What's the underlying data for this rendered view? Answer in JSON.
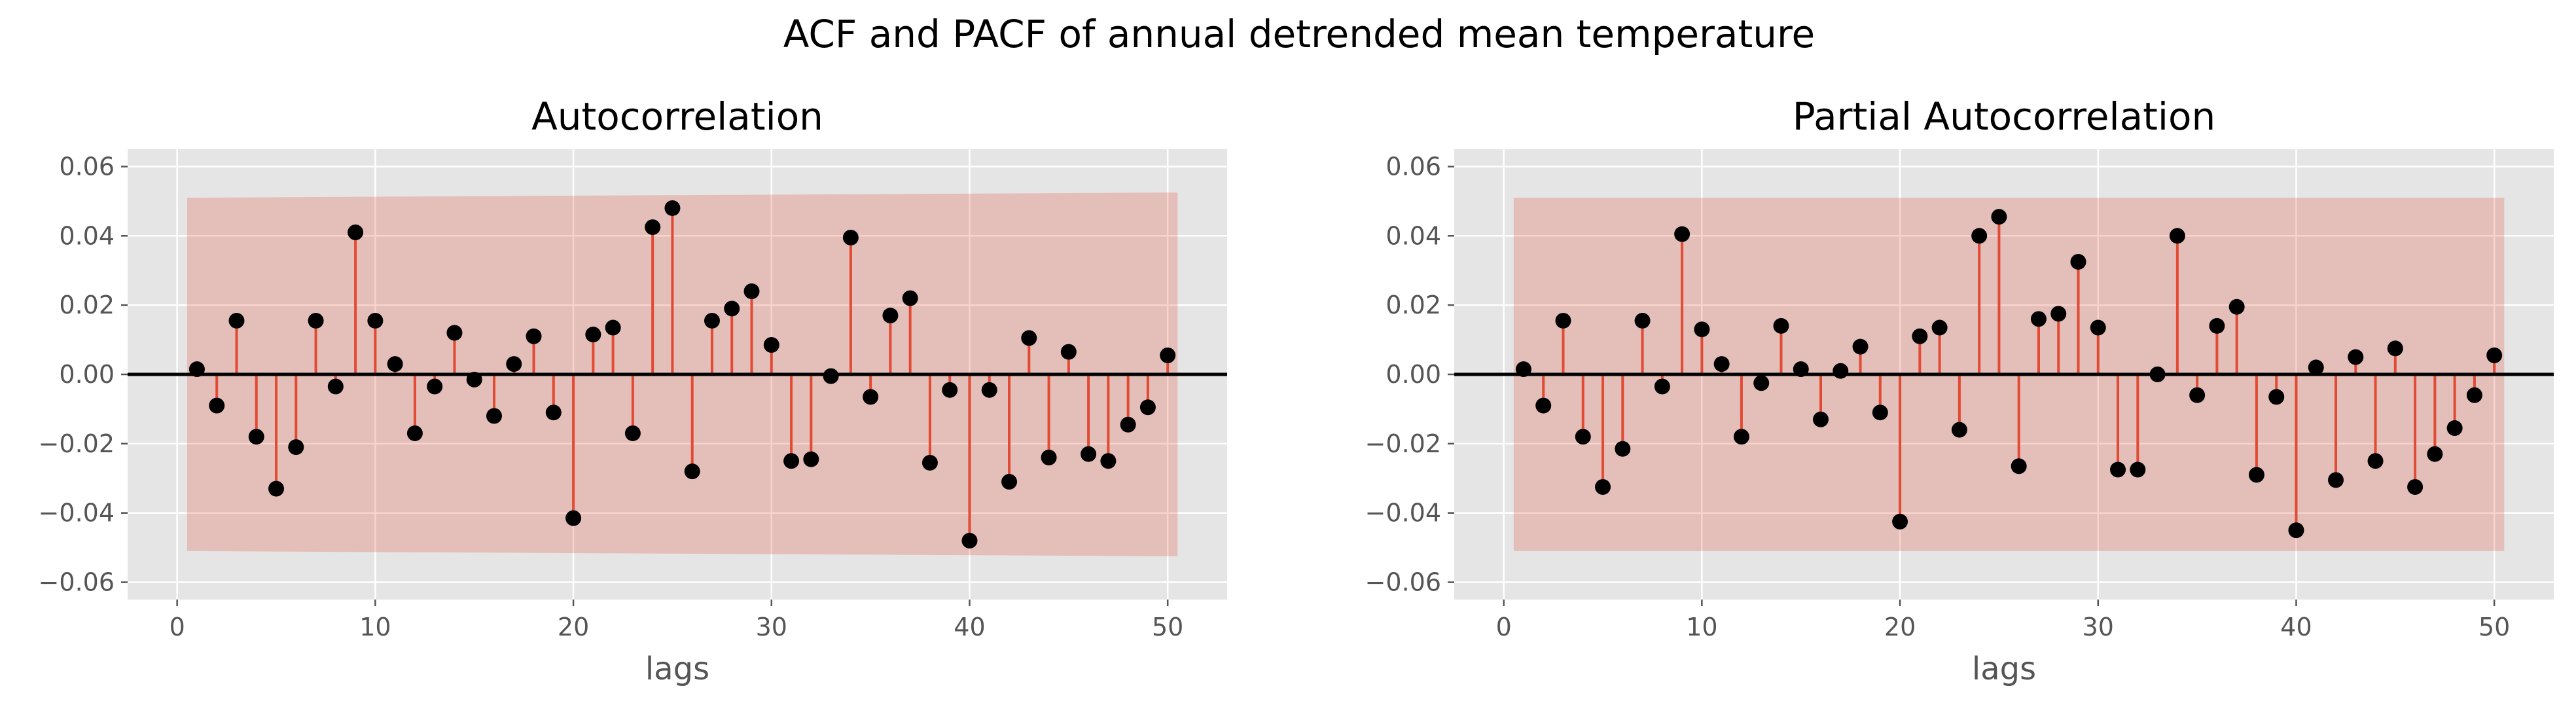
{
  "figure": {
    "title": "ACF and PACF of annual detrended mean temperature"
  },
  "style": {
    "axes_background": "#e5e5e5",
    "grid_color": "#ffffff",
    "stem_color": "#e24a33",
    "marker_color": "#000000",
    "confidence_band_color": "#e24a33",
    "zero_line_color": "#000000",
    "tick_color": "#555555"
  },
  "chart_data": [
    {
      "type": "stem",
      "title": "Autocorrelation",
      "xlabel": "lags",
      "ylabel": "",
      "grid": true,
      "xlim": [
        -2.5,
        53
      ],
      "ylim": [
        -0.065,
        0.065
      ],
      "xticks": [
        0,
        10,
        20,
        30,
        40,
        50
      ],
      "yticks": [
        -0.06,
        -0.04,
        -0.02,
        0.0,
        0.02,
        0.04,
        0.06
      ],
      "ytick_labels": [
        "−0.06",
        "−0.04",
        "−0.02",
        "0.00",
        "0.02",
        "0.04",
        "0.06"
      ],
      "confidence_band": {
        "x": [
          0.5,
          50.5
        ],
        "upper": [
          0.051,
          0.0525
        ],
        "lower": [
          -0.051,
          -0.0525
        ]
      },
      "x": [
        1,
        2,
        3,
        4,
        5,
        6,
        7,
        8,
        9,
        10,
        11,
        12,
        13,
        14,
        15,
        16,
        17,
        18,
        19,
        20,
        21,
        22,
        23,
        24,
        25,
        26,
        27,
        28,
        29,
        30,
        31,
        32,
        33,
        34,
        35,
        36,
        37,
        38,
        39,
        40,
        41,
        42,
        43,
        44,
        45,
        46,
        47,
        48,
        49,
        50
      ],
      "values": [
        0.0015,
        -0.009,
        0.0155,
        -0.018,
        -0.033,
        -0.021,
        0.0155,
        -0.0035,
        0.041,
        0.0155,
        0.003,
        -0.017,
        -0.0035,
        0.012,
        -0.0015,
        -0.012,
        0.003,
        0.011,
        -0.011,
        -0.0415,
        0.0115,
        0.0135,
        -0.017,
        0.0425,
        0.048,
        -0.028,
        0.0155,
        0.019,
        0.024,
        0.0085,
        -0.025,
        -0.0245,
        -0.0005,
        0.0395,
        -0.0065,
        0.017,
        0.022,
        -0.0255,
        -0.0045,
        -0.048,
        -0.0045,
        -0.031,
        0.0105,
        -0.024,
        0.0065,
        -0.023,
        -0.025,
        -0.0145,
        -0.0095,
        0.0055
      ]
    },
    {
      "type": "stem",
      "title": "Partial Autocorrelation",
      "xlabel": "lags",
      "ylabel": "",
      "grid": true,
      "xlim": [
        -2.5,
        53
      ],
      "ylim": [
        -0.065,
        0.065
      ],
      "xticks": [
        0,
        10,
        20,
        30,
        40,
        50
      ],
      "yticks": [
        -0.06,
        -0.04,
        -0.02,
        0.0,
        0.02,
        0.04,
        0.06
      ],
      "ytick_labels": [
        "−0.06",
        "−0.04",
        "−0.02",
        "0.00",
        "0.02",
        "0.04",
        "0.06"
      ],
      "confidence_band": {
        "x": [
          0.5,
          50.5
        ],
        "upper": [
          0.051,
          0.051
        ],
        "lower": [
          -0.051,
          -0.051
        ]
      },
      "x": [
        1,
        2,
        3,
        4,
        5,
        6,
        7,
        8,
        9,
        10,
        11,
        12,
        13,
        14,
        15,
        16,
        17,
        18,
        19,
        20,
        21,
        22,
        23,
        24,
        25,
        26,
        27,
        28,
        29,
        30,
        31,
        32,
        33,
        34,
        35,
        36,
        37,
        38,
        39,
        40,
        41,
        42,
        43,
        44,
        45,
        46,
        47,
        48,
        49,
        50
      ],
      "values": [
        0.0015,
        -0.009,
        0.0155,
        -0.018,
        -0.0325,
        -0.0215,
        0.0155,
        -0.0035,
        0.0405,
        0.013,
        0.003,
        -0.018,
        -0.0025,
        0.014,
        0.0015,
        -0.013,
        0.001,
        0.008,
        -0.011,
        -0.0425,
        0.011,
        0.0135,
        -0.016,
        0.04,
        0.0455,
        -0.0265,
        0.016,
        0.0175,
        0.0325,
        0.0135,
        -0.0275,
        -0.0275,
        0.0,
        0.04,
        -0.006,
        0.014,
        0.0195,
        -0.029,
        -0.0065,
        -0.045,
        0.002,
        -0.0305,
        0.005,
        -0.025,
        0.0075,
        -0.0325,
        -0.023,
        -0.0155,
        -0.006,
        0.0055
      ]
    }
  ]
}
